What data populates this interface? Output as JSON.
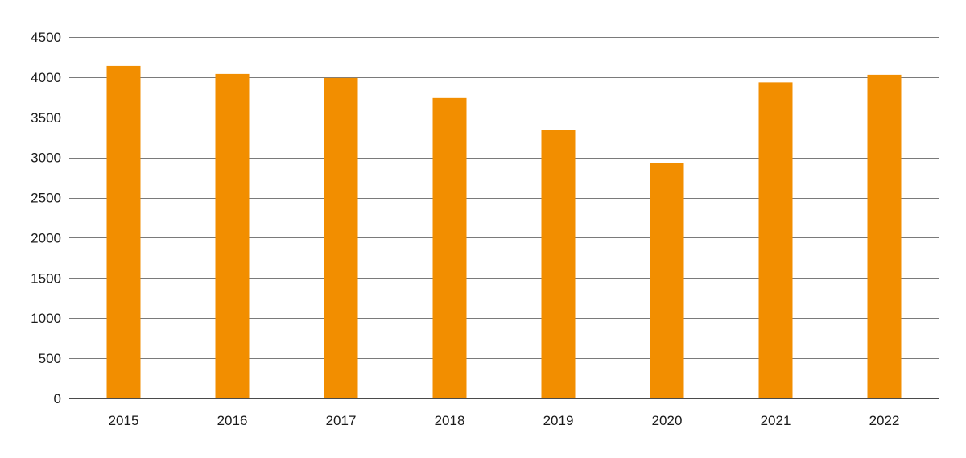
{
  "chart_data": {
    "type": "bar",
    "title": "",
    "xlabel": "",
    "ylabel": "",
    "categories": [
      "2015",
      "2016",
      "2017",
      "2018",
      "2019",
      "2020",
      "2021",
      "2022"
    ],
    "values": [
      4140,
      4040,
      3990,
      3740,
      3340,
      2935,
      3935,
      4030
    ],
    "ylim": [
      0,
      4500
    ],
    "yticks": [
      0,
      500,
      1000,
      1500,
      2000,
      2500,
      3000,
      3500,
      4000,
      4500
    ],
    "grid": true,
    "legend": "none",
    "bar_color": "#f28e00"
  }
}
